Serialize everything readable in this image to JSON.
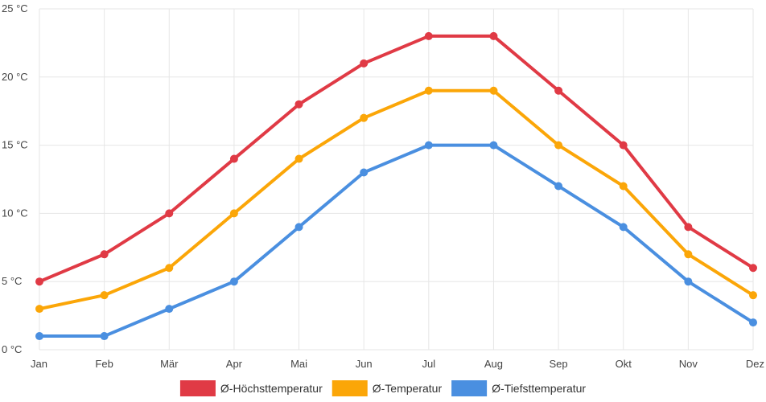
{
  "chart_data": {
    "type": "line",
    "categories": [
      "Jan",
      "Feb",
      "Mär",
      "Apr",
      "Mai",
      "Jun",
      "Jul",
      "Aug",
      "Sep",
      "Okt",
      "Nov",
      "Dez"
    ],
    "series": [
      {
        "name": "Ø-Höchsttemperatur",
        "color": "#e03a45",
        "values": [
          5,
          7,
          10,
          14,
          18,
          21,
          23,
          23,
          19,
          15,
          9,
          6
        ]
      },
      {
        "name": "Ø-Temperatur",
        "color": "#fba608",
        "values": [
          3,
          4,
          6,
          10,
          14,
          17,
          19,
          19,
          15,
          12,
          7,
          4
        ]
      },
      {
        "name": "Ø-Tiefsttemperatur",
        "color": "#4a8fe0",
        "values": [
          1,
          1,
          3,
          5,
          9,
          13,
          15,
          15,
          12,
          9,
          5,
          2
        ]
      }
    ],
    "ylim": [
      0,
      25
    ],
    "y_ticks": [
      0,
      5,
      10,
      15,
      20,
      25
    ],
    "y_tick_labels": [
      "0 °C",
      "5 °C",
      "10 °C",
      "15 °C",
      "20 °C",
      "25 °C"
    ],
    "grid": true,
    "legend_position": "bottom"
  }
}
